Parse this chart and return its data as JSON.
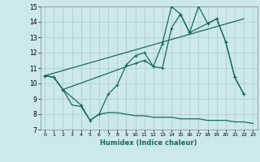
{
  "title": "",
  "xlabel": "Humidex (Indice chaleur)",
  "background_color": "#cce8e8",
  "grid_color": "#aacccc",
  "line_color": "#1a6b5a",
  "xlim": [
    -0.5,
    23.5
  ],
  "ylim": [
    7,
    15
  ],
  "yticks": [
    7,
    8,
    9,
    10,
    11,
    12,
    13,
    14,
    15
  ],
  "xticks": [
    0,
    1,
    2,
    3,
    4,
    5,
    6,
    7,
    8,
    9,
    10,
    11,
    12,
    13,
    14,
    15,
    16,
    17,
    18,
    19,
    20,
    21,
    22,
    23
  ],
  "line_smooth_x": [
    0,
    1,
    2,
    10,
    11,
    12,
    13,
    14,
    15,
    16,
    18,
    19,
    20,
    21,
    22
  ],
  "line_smooth_y": [
    10.5,
    10.4,
    9.6,
    11.3,
    11.5,
    11.1,
    11.0,
    13.6,
    14.5,
    13.3,
    13.9,
    14.2,
    12.7,
    10.4,
    9.3
  ],
  "line_jagged_x": [
    0,
    1,
    2,
    4,
    5,
    6,
    7,
    8,
    9,
    10,
    11,
    12,
    13,
    14,
    15,
    16,
    17,
    18,
    19,
    20,
    21,
    22
  ],
  "line_jagged_y": [
    10.5,
    10.4,
    9.6,
    8.6,
    7.6,
    8.0,
    9.3,
    9.9,
    11.2,
    11.8,
    12.0,
    11.1,
    12.6,
    15.0,
    14.5,
    13.3,
    15.0,
    13.9,
    14.2,
    12.7,
    10.4,
    9.3
  ],
  "line_trend_x": [
    0,
    22
  ],
  "line_trend_y": [
    10.5,
    14.2
  ],
  "line_bottom_x": [
    0,
    1,
    2,
    3,
    4,
    5,
    6,
    7,
    8,
    9,
    10,
    11,
    12,
    13,
    14,
    15,
    16,
    17,
    18,
    19,
    20,
    21,
    22,
    23
  ],
  "line_bottom_y": [
    10.5,
    10.4,
    9.6,
    8.6,
    8.5,
    7.6,
    8.0,
    8.1,
    8.1,
    8.0,
    7.9,
    7.9,
    7.8,
    7.8,
    7.8,
    7.7,
    7.7,
    7.7,
    7.6,
    7.6,
    7.6,
    7.5,
    7.5,
    7.4
  ]
}
